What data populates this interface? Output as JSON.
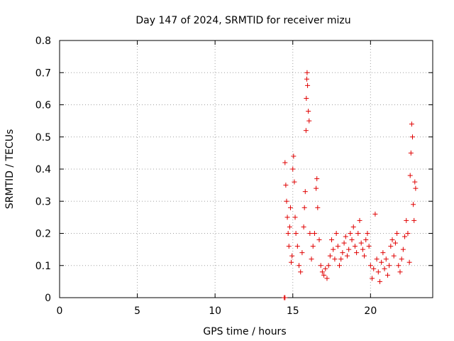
{
  "chart_data": {
    "type": "scatter",
    "title": "Day 147 of 2024, SRMTID for receiver mizu",
    "xlabel": "GPS time / hours",
    "ylabel": "SRMTID / TECUs",
    "xlim": [
      0,
      24
    ],
    "ylim": [
      0,
      0.8
    ],
    "xticks": [
      0,
      5,
      10,
      15,
      20
    ],
    "yticks": [
      0,
      0.1,
      0.2,
      0.3,
      0.4,
      0.5,
      0.6,
      0.7,
      0.8
    ],
    "grid": true,
    "marker": "+",
    "series": [
      {
        "name": "SRMTID",
        "color": "#e00000",
        "points": [
          [
            14.45,
            0.0
          ],
          [
            14.5,
            0.0
          ],
          [
            14.5,
            0.42
          ],
          [
            14.55,
            0.35
          ],
          [
            14.6,
            0.3
          ],
          [
            14.65,
            0.25
          ],
          [
            14.7,
            0.2
          ],
          [
            14.75,
            0.16
          ],
          [
            14.8,
            0.22
          ],
          [
            14.85,
            0.28
          ],
          [
            14.9,
            0.11
          ],
          [
            14.95,
            0.13
          ],
          [
            15.0,
            0.4
          ],
          [
            15.05,
            0.44
          ],
          [
            15.1,
            0.36
          ],
          [
            15.15,
            0.25
          ],
          [
            15.2,
            0.2
          ],
          [
            15.3,
            0.16
          ],
          [
            15.4,
            0.1
          ],
          [
            15.5,
            0.08
          ],
          [
            15.6,
            0.14
          ],
          [
            15.7,
            0.22
          ],
          [
            15.75,
            0.28
          ],
          [
            15.8,
            0.33
          ],
          [
            15.85,
            0.52
          ],
          [
            15.87,
            0.62
          ],
          [
            15.9,
            0.68
          ],
          [
            15.92,
            0.7
          ],
          [
            15.95,
            0.66
          ],
          [
            16.0,
            0.58
          ],
          [
            16.05,
            0.55
          ],
          [
            16.1,
            0.2
          ],
          [
            16.2,
            0.12
          ],
          [
            16.3,
            0.16
          ],
          [
            16.4,
            0.2
          ],
          [
            16.5,
            0.34
          ],
          [
            16.55,
            0.37
          ],
          [
            16.6,
            0.28
          ],
          [
            16.7,
            0.18
          ],
          [
            16.8,
            0.1
          ],
          [
            16.9,
            0.08
          ],
          [
            17.0,
            0.07
          ],
          [
            17.1,
            0.09
          ],
          [
            17.2,
            0.06
          ],
          [
            17.3,
            0.1
          ],
          [
            17.4,
            0.13
          ],
          [
            17.5,
            0.18
          ],
          [
            17.6,
            0.15
          ],
          [
            17.7,
            0.12
          ],
          [
            17.8,
            0.2
          ],
          [
            17.9,
            0.16
          ],
          [
            18.0,
            0.1
          ],
          [
            18.1,
            0.12
          ],
          [
            18.2,
            0.14
          ],
          [
            18.3,
            0.17
          ],
          [
            18.4,
            0.19
          ],
          [
            18.5,
            0.13
          ],
          [
            18.6,
            0.15
          ],
          [
            18.7,
            0.2
          ],
          [
            18.8,
            0.18
          ],
          [
            18.9,
            0.22
          ],
          [
            19.0,
            0.16
          ],
          [
            19.1,
            0.14
          ],
          [
            19.2,
            0.2
          ],
          [
            19.3,
            0.24
          ],
          [
            19.4,
            0.17
          ],
          [
            19.5,
            0.15
          ],
          [
            19.6,
            0.13
          ],
          [
            19.7,
            0.18
          ],
          [
            19.8,
            0.2
          ],
          [
            19.9,
            0.16
          ],
          [
            20.0,
            0.1
          ],
          [
            20.1,
            0.06
          ],
          [
            20.2,
            0.09
          ],
          [
            20.3,
            0.26
          ],
          [
            20.4,
            0.12
          ],
          [
            20.5,
            0.08
          ],
          [
            20.6,
            0.05
          ],
          [
            20.7,
            0.11
          ],
          [
            20.8,
            0.14
          ],
          [
            20.9,
            0.09
          ],
          [
            21.0,
            0.12
          ],
          [
            21.1,
            0.07
          ],
          [
            21.2,
            0.1
          ],
          [
            21.3,
            0.16
          ],
          [
            21.4,
            0.18
          ],
          [
            21.5,
            0.13
          ],
          [
            21.6,
            0.17
          ],
          [
            21.7,
            0.2
          ],
          [
            21.8,
            0.1
          ],
          [
            21.9,
            0.08
          ],
          [
            22.0,
            0.12
          ],
          [
            22.1,
            0.15
          ],
          [
            22.2,
            0.19
          ],
          [
            22.3,
            0.24
          ],
          [
            22.4,
            0.2
          ],
          [
            22.5,
            0.11
          ],
          [
            22.55,
            0.38
          ],
          [
            22.6,
            0.45
          ],
          [
            22.65,
            0.54
          ],
          [
            22.7,
            0.5
          ],
          [
            22.75,
            0.29
          ],
          [
            22.8,
            0.24
          ],
          [
            22.85,
            0.36
          ],
          [
            22.9,
            0.34
          ]
        ]
      }
    ]
  }
}
